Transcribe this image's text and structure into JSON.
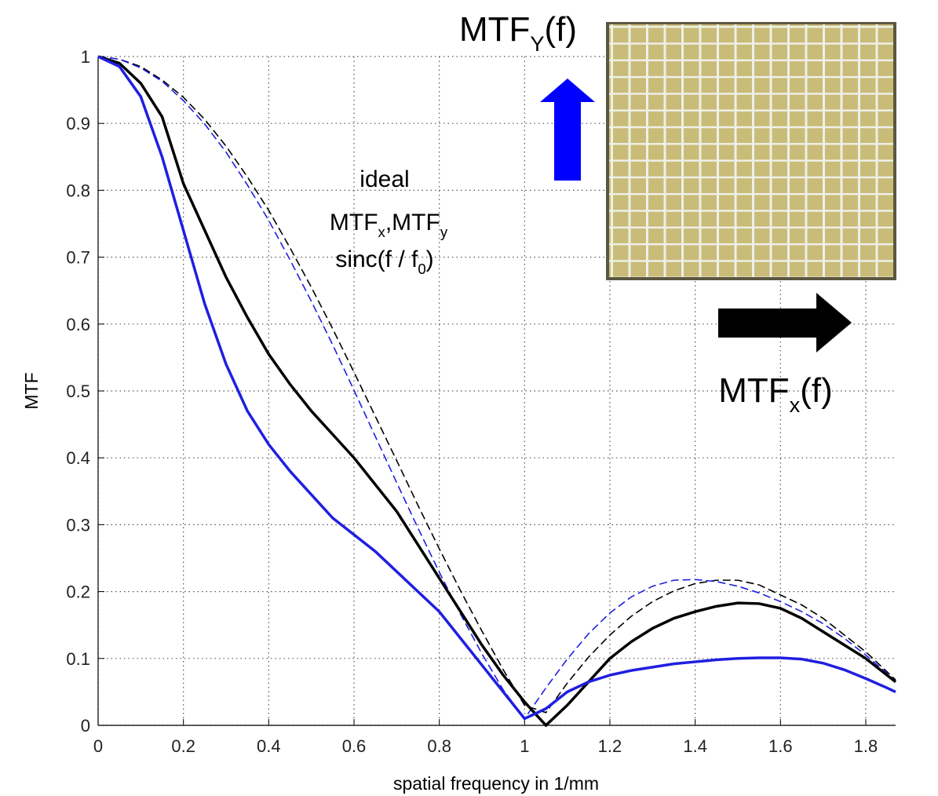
{
  "chart_data": {
    "type": "line",
    "xlabel": "spatial frequency in 1/mm",
    "ylabel": "MTF",
    "xlim": [
      0,
      1.87
    ],
    "ylim": [
      0,
      1
    ],
    "xticks": [
      0,
      0.2,
      0.4,
      0.6,
      0.8,
      1,
      1.2,
      1.4,
      1.6,
      1.8
    ],
    "yticks": [
      0,
      0.1,
      0.2,
      0.3,
      0.4,
      0.5,
      0.6,
      0.7,
      0.8,
      0.9,
      1
    ],
    "grid": true,
    "x": [
      0,
      0.05,
      0.1,
      0.15,
      0.2,
      0.25,
      0.3,
      0.35,
      0.4,
      0.45,
      0.5,
      0.55,
      0.6,
      0.65,
      0.7,
      0.75,
      0.8,
      0.85,
      0.9,
      0.95,
      1,
      1.05,
      1.1,
      1.15,
      1.2,
      1.25,
      1.3,
      1.35,
      1.4,
      1.45,
      1.5,
      1.55,
      1.6,
      1.65,
      1.7,
      1.75,
      1.8,
      1.85,
      1.87
    ],
    "series": [
      {
        "color": "#000000",
        "dash": true,
        "values": [
          1,
          0.996,
          0.985,
          0.965,
          0.939,
          0.906,
          0.866,
          0.82,
          0.77,
          0.714,
          0.655,
          0.593,
          0.528,
          0.462,
          0.396,
          0.329,
          0.264,
          0.201,
          0.141,
          0.083,
          0.03,
          0.019,
          0.063,
          0.102,
          0.135,
          0.163,
          0.185,
          0.201,
          0.212,
          0.217,
          0.217,
          0.21,
          0.195,
          0.18,
          0.16,
          0.135,
          0.11,
          0.08,
          0.068
        ]
      },
      {
        "color": "#1f1fe0",
        "dash": true,
        "values": [
          1,
          0.996,
          0.983,
          0.963,
          0.934,
          0.899,
          0.857,
          0.808,
          0.755,
          0.696,
          0.634,
          0.569,
          0.501,
          0.432,
          0.363,
          0.295,
          0.229,
          0.166,
          0.107,
          0.053,
          0.01,
          0.056,
          0.099,
          0.137,
          0.168,
          0.192,
          0.208,
          0.217,
          0.218,
          0.215,
          0.208,
          0.198,
          0.185,
          0.17,
          0.152,
          0.13,
          0.105,
          0.078,
          0.066
        ]
      },
      {
        "color": "#000000",
        "dash": false,
        "values": [
          1,
          0.99,
          0.96,
          0.91,
          0.81,
          0.74,
          0.67,
          0.61,
          0.555,
          0.51,
          0.47,
          0.435,
          0.4,
          0.36,
          0.32,
          0.27,
          0.22,
          0.17,
          0.12,
          0.075,
          0.035,
          0,
          0.03,
          0.065,
          0.1,
          0.125,
          0.145,
          0.16,
          0.17,
          0.178,
          0.183,
          0.182,
          0.175,
          0.16,
          0.14,
          0.12,
          0.1,
          0.075,
          0.065
        ]
      },
      {
        "color": "#1f1fe0",
        "dash": false,
        "values": [
          1,
          0.985,
          0.94,
          0.85,
          0.74,
          0.63,
          0.54,
          0.47,
          0.42,
          0.38,
          0.345,
          0.31,
          0.285,
          0.26,
          0.23,
          0.2,
          0.17,
          0.13,
          0.09,
          0.05,
          0.01,
          0.025,
          0.05,
          0.065,
          0.075,
          0.082,
          0.087,
          0.092,
          0.095,
          0.098,
          0.1,
          0.101,
          0.101,
          0.099,
          0.093,
          0.083,
          0.07,
          0.056,
          0.05
        ]
      }
    ],
    "annotations": [
      {
        "parts": [
          {
            "text": "ideal"
          }
        ]
      },
      {
        "parts": [
          {
            "text": "MTF"
          },
          {
            "text": "x",
            "sub": true
          },
          {
            "text": ",MTF"
          },
          {
            "text": "y",
            "sub": true
          }
        ]
      },
      {
        "parts": [
          {
            "text": "sinc(f / f"
          },
          {
            "text": "0",
            "sub": true
          },
          {
            "text": ")"
          }
        ]
      },
      {
        "parts": [
          {
            "text": "MTF"
          },
          {
            "text": "Y",
            "sub": true
          },
          {
            "text": "(f)"
          }
        ]
      },
      {
        "parts": [
          {
            "text": "MTF"
          },
          {
            "text": "x",
            "sub": true
          },
          {
            "text": "(f)"
          }
        ]
      }
    ]
  }
}
